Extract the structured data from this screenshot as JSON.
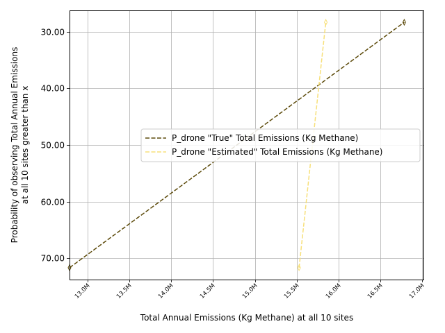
{
  "chart_data": {
    "type": "line",
    "title": "",
    "xlabel": "Total Annual Emissions (Kg Methane) at all 10 sites",
    "ylabel_lines": [
      "Probability of observing Total Annual Emissions",
      "at all 10 sites greater than x"
    ],
    "xlim": [
      12780000,
      17020000
    ],
    "ylim": [
      26.2,
      73.8
    ],
    "y_inverted": true,
    "grid": true,
    "legend_position": "center-right",
    "x_ticks": [
      {
        "value": 13000000,
        "label": "13.0M"
      },
      {
        "value": 13500000,
        "label": "13.5M"
      },
      {
        "value": 14000000,
        "label": "14.0M"
      },
      {
        "value": 14500000,
        "label": "14.5M"
      },
      {
        "value": 15000000,
        "label": "15.0M"
      },
      {
        "value": 15500000,
        "label": "15.5M"
      },
      {
        "value": 16000000,
        "label": "16.0M"
      },
      {
        "value": 16500000,
        "label": "16.5M"
      },
      {
        "value": 17000000,
        "label": "17.0M"
      }
    ],
    "y_ticks": [
      {
        "value": 30,
        "label": "30.00"
      },
      {
        "value": 40,
        "label": "40.00"
      },
      {
        "value": 50,
        "label": "50.00"
      },
      {
        "value": 60,
        "label": "60.00"
      },
      {
        "value": 70,
        "label": "70.00"
      }
    ],
    "series": [
      {
        "name": "P_drone \"True\" Total Emissions (Kg Methane)",
        "color": "#5c4a0a",
        "style": "dashed",
        "marker": "thin-diamond",
        "points": [
          {
            "x": 12780000,
            "y": 71.7
          },
          {
            "x": 16790000,
            "y": 28.3
          }
        ]
      },
      {
        "name": "P_drone \"Estimated\" Total Emissions (Kg Methane)",
        "color": "#f7e07a",
        "style": "dashed",
        "marker": "thin-diamond",
        "points": [
          {
            "x": 15530000,
            "y": 71.7
          },
          {
            "x": 15850000,
            "y": 28.3
          }
        ]
      }
    ]
  }
}
